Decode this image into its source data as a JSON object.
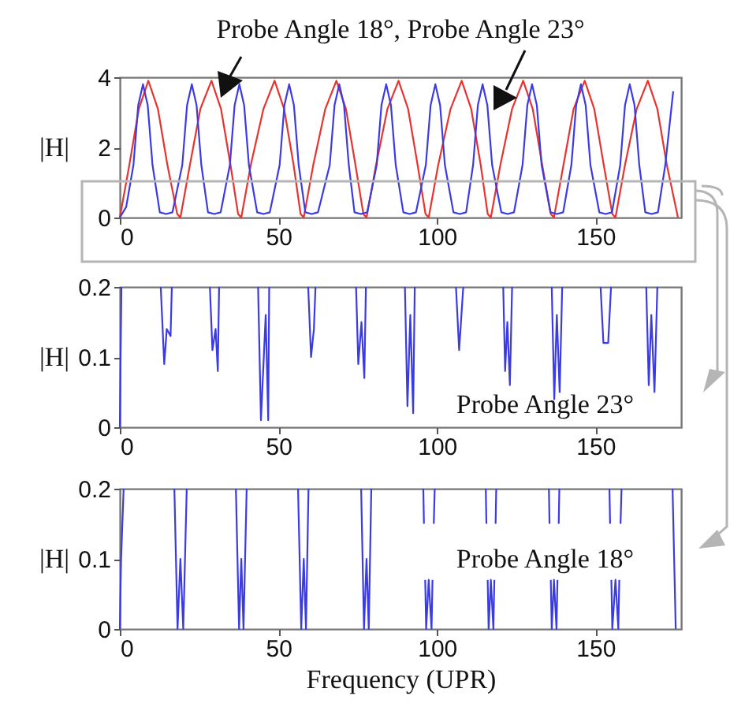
{
  "chart_data": [
    {
      "type": "line",
      "title": "Probe Angle 18°, Probe Angle 23°",
      "ylabel": "|H|",
      "xlim": [
        0,
        177
      ],
      "ylim": [
        0,
        4
      ],
      "xticks": [
        0,
        50,
        100,
        150
      ],
      "yticks": [
        0,
        2,
        4
      ],
      "series": [
        {
          "color": "#e8342f",
          "x": [
            0,
            3,
            6,
            9,
            12,
            15,
            18.1,
            19.1,
            22.1,
            25.4,
            28.9,
            31.9,
            34.9,
            37.3,
            38.3,
            41.3,
            45.3,
            48.8,
            51.8,
            54.8,
            57,
            58,
            61,
            64.8,
            68.3,
            71.3,
            74.3,
            76.8,
            77.8,
            80.8,
            84.4,
            87.9,
            90.9,
            93.9,
            96.4,
            97.4,
            100.4,
            104.3,
            107.8,
            110.8,
            113.8,
            116,
            117,
            120,
            123.7,
            127.2,
            130.2,
            133.2,
            135.9,
            136.9,
            139.9,
            143.1,
            146.6,
            149.6,
            152.6,
            155.3,
            156.3,
            159.3,
            163,
            166.5,
            169.5,
            172.5,
            176
          ],
          "values": [
            0,
            1.5,
            3.1,
            3.9,
            3.1,
            1.5,
            0.1,
            0,
            1.5,
            3.1,
            3.9,
            3.1,
            1.5,
            0.1,
            0,
            1.5,
            3.1,
            3.9,
            3.1,
            1.5,
            0.1,
            0,
            1.5,
            3.1,
            3.9,
            3.1,
            1.5,
            0.1,
            0,
            1.5,
            3.1,
            3.9,
            3.1,
            1.5,
            0.1,
            0,
            1.5,
            3.1,
            3.9,
            3.1,
            1.5,
            0.1,
            0,
            1.5,
            3.1,
            3.9,
            3.1,
            1.5,
            0.1,
            0,
            1.5,
            3.1,
            3.9,
            3.1,
            1.5,
            0.1,
            0,
            1.5,
            3.1,
            3.9,
            3.1,
            1.5,
            0
          ]
        },
        {
          "color": "#3b3be6",
          "x": [
            0,
            2,
            4.3,
            5.8,
            7.3,
            8.8,
            10.3,
            12.6,
            14.6,
            16.6,
            19.7,
            21.2,
            22.7,
            24.2,
            25.7,
            27.8,
            29.8,
            31.8,
            34.7,
            36.2,
            37.7,
            39.2,
            40.7,
            43.3,
            45.3,
            47.3,
            50.4,
            51.9,
            53.4,
            54.9,
            56.4,
            58.5,
            60.5,
            62.5,
            66.2,
            67.7,
            69.2,
            70.7,
            72.2,
            74,
            76,
            78,
            81,
            82.5,
            84,
            85.5,
            87,
            89.4,
            91.4,
            93.4,
            96.5,
            98,
            99.5,
            101,
            102.5,
            105.2,
            107.2,
            109.2,
            111.4,
            112.9,
            114.4,
            115.9,
            117.4,
            120.3,
            122.3,
            124.3,
            127,
            128.5,
            130,
            131.5,
            133,
            135.8,
            137.8,
            139.8,
            142.4,
            143.9,
            145.4,
            146.9,
            148.4,
            151.2,
            153.2,
            155.2,
            157.8,
            159.3,
            160.8,
            162.3,
            163.8,
            165.7,
            167.7,
            169.7,
            172,
            174.5
          ],
          "values": [
            0,
            0.3,
            1.5,
            3.2,
            3.8,
            3.2,
            1.5,
            0.15,
            0.1,
            0.15,
            1.5,
            3.2,
            3.8,
            3.2,
            1.5,
            0.15,
            0.1,
            0.15,
            1.5,
            3.2,
            3.8,
            3.2,
            1.5,
            0.15,
            0.1,
            0.15,
            1.5,
            3.2,
            3.8,
            3.2,
            1.5,
            0.15,
            0.1,
            0.15,
            1.5,
            3.2,
            3.8,
            3.2,
            1.5,
            0.15,
            0.1,
            0.15,
            1.5,
            3.2,
            3.8,
            3.2,
            1.5,
            0.15,
            0.1,
            0.15,
            1.5,
            3.2,
            3.8,
            3.2,
            1.5,
            0.15,
            0.1,
            0.15,
            1.5,
            3.2,
            3.8,
            3.2,
            1.5,
            0.15,
            0.1,
            0.15,
            1.5,
            3.2,
            3.8,
            3.2,
            1.5,
            0.15,
            0.1,
            0.15,
            1.5,
            3.2,
            3.8,
            3.2,
            1.5,
            0.15,
            0.1,
            0.15,
            1.5,
            3.2,
            3.8,
            3.2,
            1.5,
            0.15,
            0.1,
            0.15,
            1.5,
            3.6
          ]
        }
      ]
    },
    {
      "type": "line",
      "ylabel": "|H|",
      "xlim": [
        0,
        177
      ],
      "ylim": [
        0,
        0.2
      ],
      "xticks": [
        0,
        50,
        100,
        150
      ],
      "yticks": [
        0,
        0.1,
        0.2
      ],
      "annotations": [
        "Probe Angle 23°"
      ],
      "series": [
        {
          "color": "#3b3be6",
          "x": [
            0,
            0.5,
            1,
            12.9,
            14,
            14.8,
            16,
            16.4,
            17,
            28.4,
            29.2,
            30.2,
            30.9,
            31.3,
            32,
            43.6,
            44.5,
            46,
            46.8,
            47.1,
            48,
            59.4,
            60.3,
            61.2,
            61.7,
            62,
            74.5,
            75.2,
            76.2,
            77.1,
            77.6,
            78,
            89.9,
            90.7,
            91.6,
            92.5,
            93,
            94,
            106,
            107,
            108.3,
            109,
            120.9,
            121.5,
            122.2,
            123,
            123.7,
            124,
            136.2,
            137,
            137.8,
            138.7,
            139.5,
            140,
            151.6,
            152.5,
            154,
            154.9,
            155,
            166,
            166.8,
            167.6,
            168.6,
            169.5
          ],
          "values": [
            0,
            0.2,
            null,
            0.2,
            0.09,
            0.14,
            0.13,
            0.2,
            null,
            0.2,
            0.11,
            0.14,
            0.08,
            0.2,
            null,
            0.2,
            0.01,
            0.16,
            0.01,
            0.2,
            null,
            0.2,
            0.1,
            0.14,
            0.2,
            null,
            0.2,
            0.09,
            0.15,
            0.07,
            0.2,
            null,
            0.2,
            0.03,
            0.16,
            0.02,
            0.2,
            null,
            0.2,
            0.11,
            0.2,
            null,
            0.2,
            0.08,
            0.15,
            0.06,
            0.2,
            null,
            0.2,
            0.04,
            0.16,
            0.05,
            0.2,
            null,
            0.2,
            0.12,
            0.12,
            0.2,
            null,
            0.2,
            0.06,
            0.16,
            0.05,
            0.2
          ]
        }
      ]
    },
    {
      "type": "line",
      "xlabel": "Frequency (UPR)",
      "ylabel": "|H|",
      "xlim": [
        0,
        177
      ],
      "ylim": [
        0,
        0.2
      ],
      "xticks": [
        0,
        50,
        100,
        150
      ],
      "yticks": [
        0,
        0.1,
        0.2
      ],
      "annotations": [
        "Probe Angle 18°"
      ],
      "series": [
        {
          "color": "#3b3be6",
          "x": [
            0,
            0.4,
            1.2,
            1.5,
            17.2,
            18.2,
            19.1,
            20,
            21.1,
            21.5,
            36.6,
            37.6,
            38.3,
            39,
            40,
            40.5,
            56.2,
            57.2,
            58,
            58.7,
            59.5,
            60,
            76.1,
            77,
            77.8,
            78.5,
            79.3,
            79.5,
            95.7,
            95.9,
            96.1,
            96.3,
            96.6,
            97.4,
            98.3,
            98.6,
            98.8,
            99,
            99.3,
            99.5,
            115.4,
            115.6,
            115.8,
            116,
            116.3,
            117,
            117.8,
            118.1,
            118.3,
            118.5,
            118.7,
            119,
            135.3,
            135.5,
            135.7,
            135.9,
            136.2,
            136.9,
            137.7,
            138,
            138.2,
            138.4,
            138.6,
            139,
            154.4,
            154.6,
            154.8,
            155,
            155.3,
            156.3,
            157.2,
            157.5,
            157.7,
            157.9,
            158.2,
            158.5,
            174.3,
            175.3
          ],
          "values": [
            0,
            0.1,
            0.2,
            null,
            0.2,
            0,
            0.1,
            0,
            0.2,
            null,
            0.2,
            0,
            0.1,
            0,
            0.2,
            null,
            0.2,
            0,
            0.1,
            0,
            0.2,
            null,
            0.2,
            0,
            0.1,
            0,
            0.2,
            null,
            0.2,
            0.15,
            null,
            0.07,
            0,
            0.07,
            0,
            0.07,
            null,
            0.15,
            0.2,
            null,
            0.2,
            0.15,
            null,
            0.07,
            0,
            0.07,
            0,
            0.07,
            null,
            0.15,
            0.2,
            null,
            0.2,
            0.15,
            null,
            0.07,
            0,
            0.07,
            0,
            0.07,
            null,
            0.15,
            0.2,
            null,
            0.2,
            0.15,
            null,
            0.07,
            0,
            0.07,
            0,
            0.07,
            null,
            0.15,
            0.2,
            null,
            0.2,
            0
          ]
        }
      ]
    }
  ]
}
